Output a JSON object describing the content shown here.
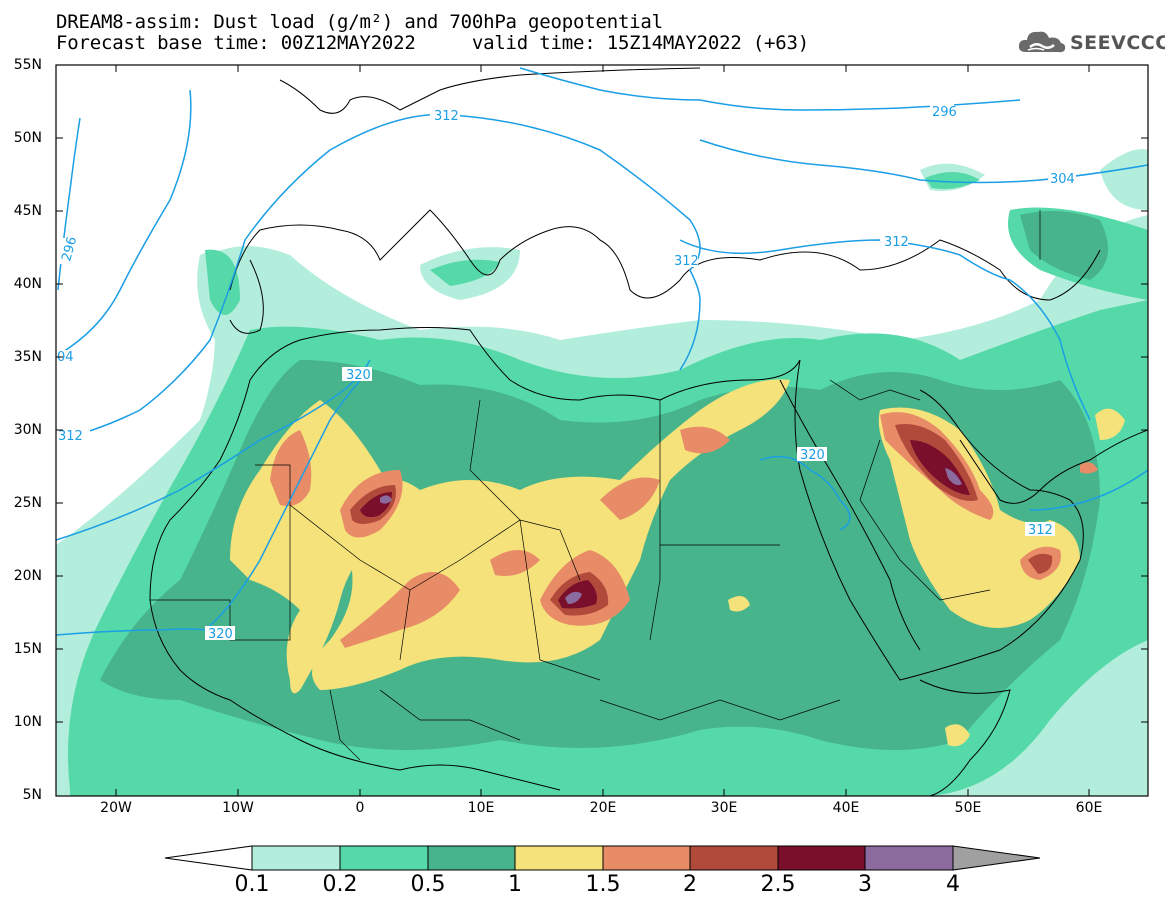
{
  "title": {
    "line1": "DREAM8-assim: Dust load (g/m²) and 700hPa geopotential",
    "line2": "Forecast base time: 00Z12MAY2022     valid time: 15Z14MAY2022 (+63)"
  },
  "logo": {
    "text": "SEEVCCC"
  },
  "map": {
    "lat_labels": [
      "55N",
      "50N",
      "45N",
      "40N",
      "35N",
      "30N",
      "25N",
      "20N",
      "15N",
      "10N",
      "5N"
    ],
    "lon_labels": [
      "20W",
      "10W",
      "0",
      "10E",
      "20E",
      "30E",
      "40E",
      "50E",
      "60E"
    ],
    "geopotential_labels": [
      "296",
      "296",
      "304",
      "312",
      "312",
      "312",
      "312",
      "312",
      "320",
      "320",
      "320",
      "04"
    ],
    "colors": {
      "coast": "#000000",
      "geopotential": "#1a9ee5",
      "background": "#ffffff"
    }
  },
  "colorbar": {
    "labels": [
      "0.1",
      "0.2",
      "0.5",
      "1",
      "1.5",
      "2",
      "2.5",
      "3",
      "4"
    ],
    "colors": [
      "#b2eedb",
      "#55d9a8",
      "#48b48b",
      "#f5e27a",
      "#e88b67",
      "#b24a3b",
      "#7a0f2c",
      "#8b6a9e"
    ],
    "under_color": "#ffffff",
    "over_color": "#a0a0a0"
  }
}
